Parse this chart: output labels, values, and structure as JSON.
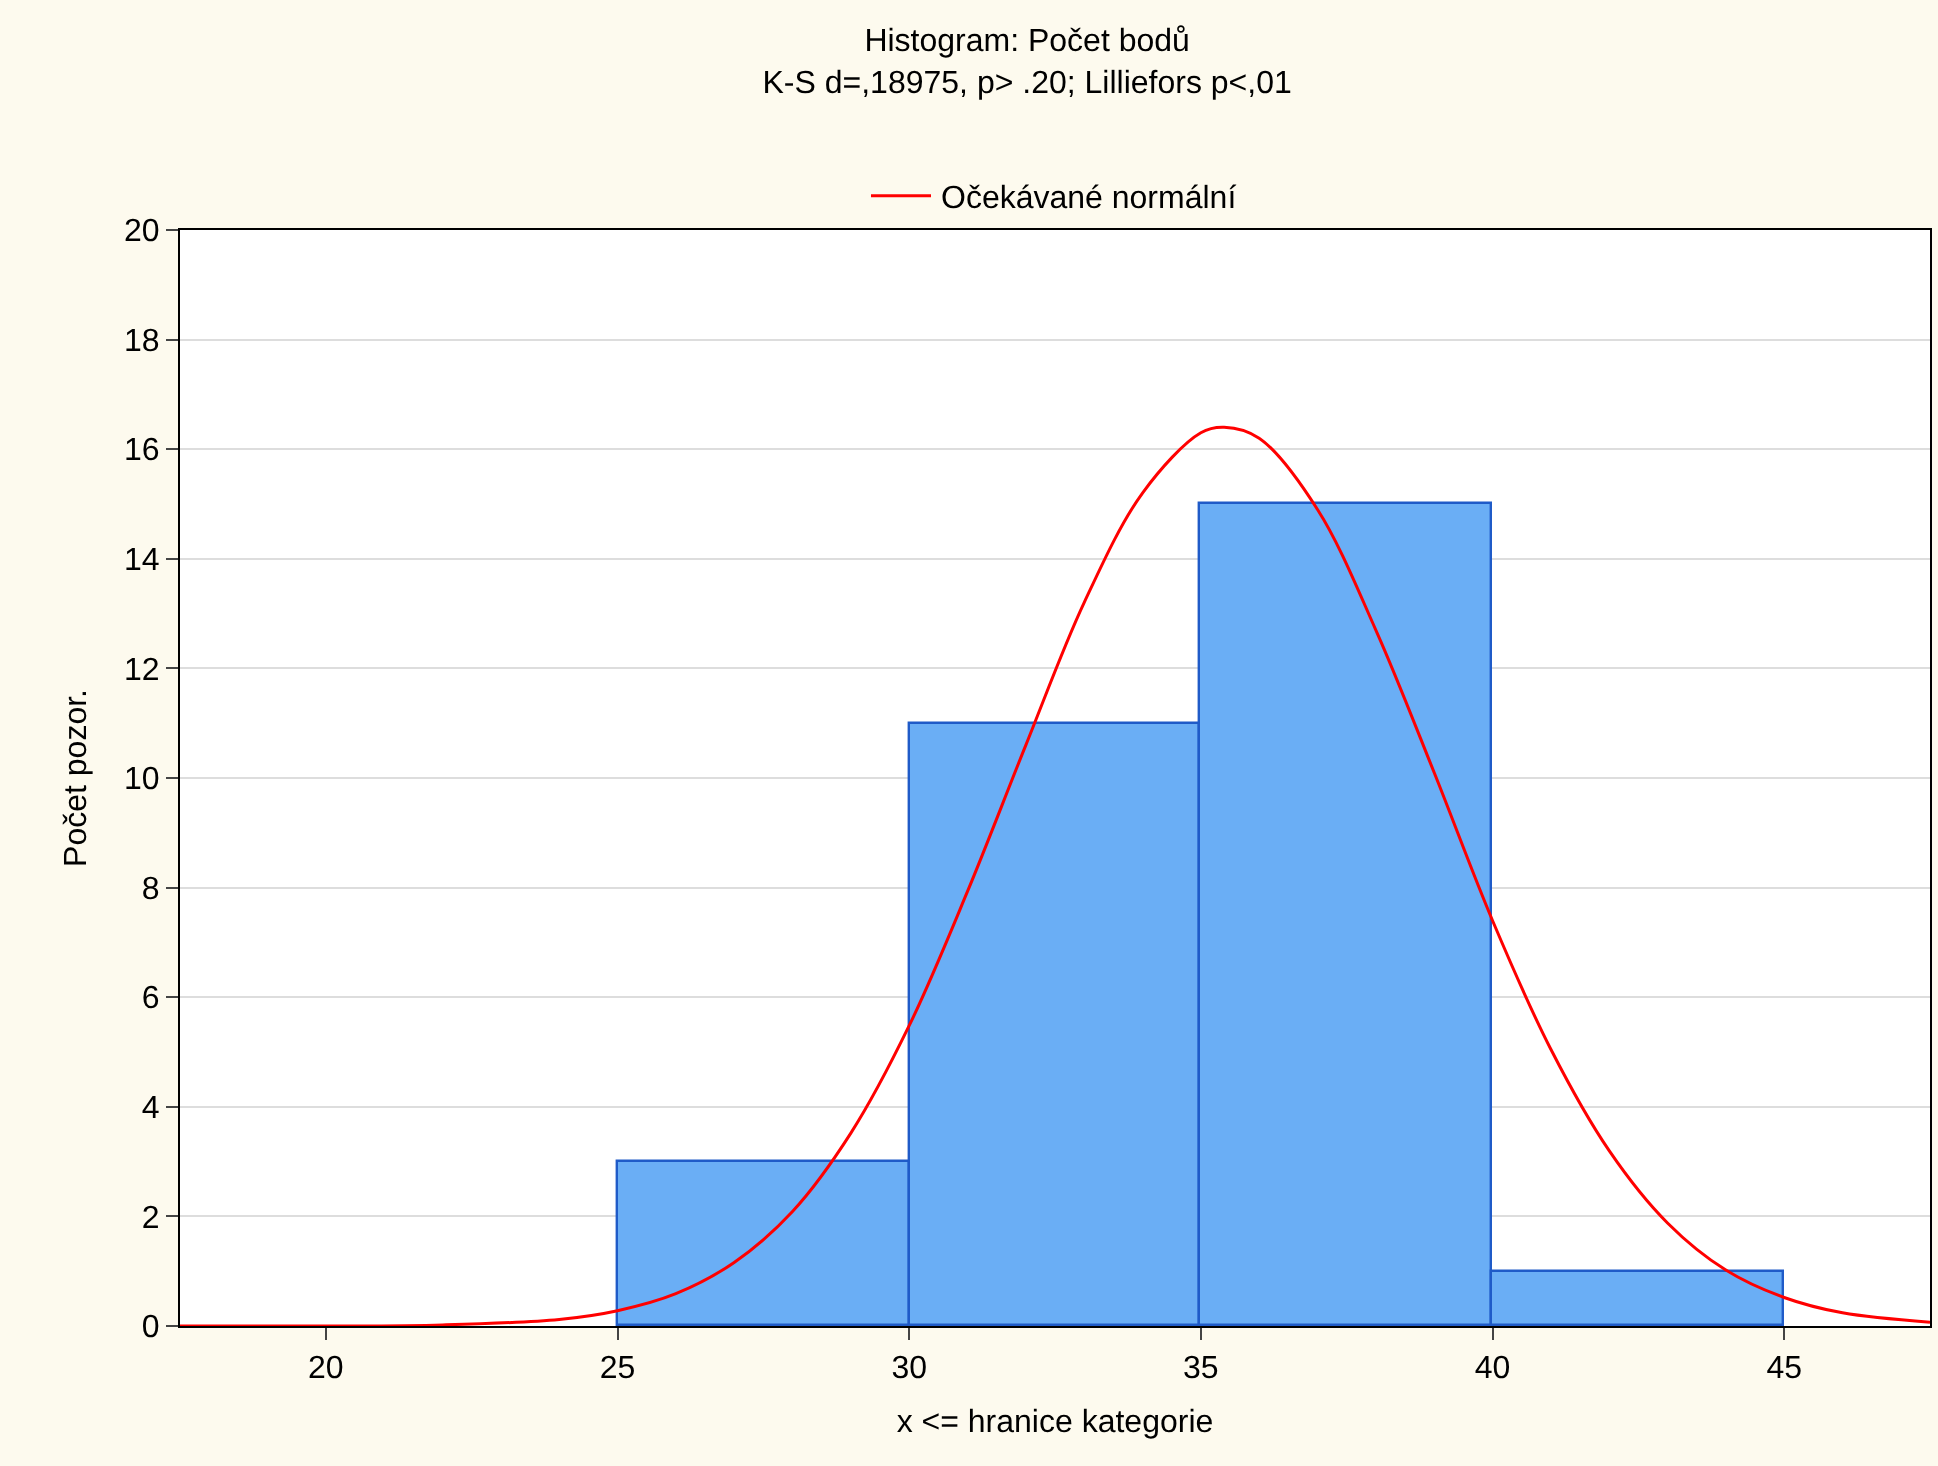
{
  "chart_data": {
    "type": "histogram",
    "title": "Histogram: Počet bodů",
    "subtitle": "K-S d=,18975, p> .20; Lilliefors p<,01",
    "xlabel": "x <= hranice kategorie",
    "ylabel": "Počet pozor.",
    "bins": [
      25,
      30,
      35,
      40,
      45
    ],
    "values": [
      3,
      11,
      15,
      1
    ],
    "color": "#6aaef5",
    "series": [
      {
        "type": "line",
        "name": "Očekávané normální",
        "color": "#ff0000",
        "x": [
          17.5,
          20,
          22,
          24,
          25,
          26,
          27,
          28,
          29,
          30,
          31,
          32,
          33,
          34,
          35,
          35.4,
          36,
          37,
          38,
          39,
          40,
          41,
          42,
          43,
          44,
          45,
          46,
          47.5
        ],
        "values": [
          0.0,
          0.0,
          0.02,
          0.12,
          0.28,
          0.59,
          1.16,
          2.09,
          3.52,
          5.48,
          7.93,
          10.6,
          13.2,
          15.2,
          16.3,
          16.4,
          16.2,
          14.9,
          12.7,
          10.1,
          7.4,
          5.05,
          3.2,
          1.88,
          1.02,
          0.52,
          0.24,
          0.07
        ]
      }
    ],
    "xlim": [
      17.5,
      47.5
    ],
    "xticks": [
      20,
      25,
      30,
      35,
      40,
      45
    ],
    "ylim": [
      0,
      20
    ],
    "yticks": [
      0,
      2,
      4,
      6,
      8,
      10,
      12,
      14,
      16,
      18,
      20
    ],
    "grid": "y",
    "legend": "top"
  }
}
